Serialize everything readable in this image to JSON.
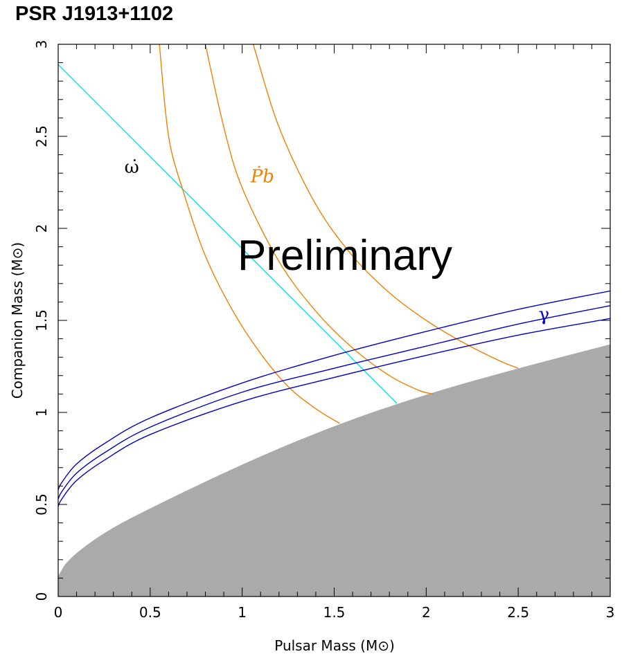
{
  "title": "PSR J1913+1102",
  "chart_data": {
    "type": "line",
    "title": "PSR J1913+1102",
    "xlabel": "Pulsar Mass (M⊙)",
    "ylabel": "Companion Mass (M⊙)",
    "xlim": [
      0,
      3
    ],
    "ylim": [
      0,
      3
    ],
    "xticks": [
      "0",
      "0.5",
      "1",
      "1.5",
      "2",
      "2.5",
      "3"
    ],
    "yticks": [
      "0",
      "0.5",
      "1",
      "1.5",
      "2",
      "2.5",
      "3"
    ],
    "grid": false,
    "annotation": "Preliminary",
    "excluded_region": {
      "color": "#aaaaaa",
      "x": [
        0,
        0.05,
        0.25,
        0.5,
        1.0,
        1.5,
        2.0,
        2.5,
        3.0
      ],
      "y": [
        0.11,
        0.2,
        0.35,
        0.48,
        0.72,
        0.93,
        1.1,
        1.24,
        1.37
      ]
    },
    "series": [
      {
        "name": "ω̇",
        "color": "#00e5e5",
        "label_at": [
          0.4,
          2.3
        ],
        "x": [
          0,
          1.84
        ],
        "y": [
          2.89,
          1.05
        ]
      },
      {
        "name": "Ṗb",
        "color": "#f08000",
        "label_at": [
          1.11,
          2.25
        ],
        "label_italic": true,
        "curves": [
          {
            "x": [
              0.55,
              0.6,
              0.68,
              0.8,
              0.95,
              1.1,
              1.25,
              1.4,
              1.53
            ],
            "y": [
              3.0,
              2.5,
              2.2,
              1.85,
              1.55,
              1.32,
              1.14,
              1.02,
              0.94
            ]
          },
          {
            "x": [
              0.8,
              0.9,
              1.0,
              1.2,
              1.4,
              1.6,
              1.8,
              1.96,
              2.04
            ],
            "y": [
              3.0,
              2.55,
              2.22,
              1.82,
              1.55,
              1.35,
              1.2,
              1.12,
              1.1
            ]
          },
          {
            "x": [
              1.06,
              1.2,
              1.4,
              1.6,
              1.8,
              2.0,
              2.2,
              2.4,
              2.5
            ],
            "y": [
              3.0,
              2.55,
              2.13,
              1.85,
              1.65,
              1.5,
              1.38,
              1.28,
              1.24
            ]
          }
        ]
      },
      {
        "name": "γ",
        "color": "#0000cc",
        "label_at": [
          2.64,
          1.5
        ],
        "curves": [
          {
            "x": [
              0,
              0.02,
              0.1,
              0.25,
              0.5,
              1.0,
              1.5,
              2.0,
              2.5,
              3.0
            ],
            "y": [
              0.58,
              0.62,
              0.72,
              0.83,
              0.97,
              1.16,
              1.31,
              1.44,
              1.56,
              1.66
            ]
          },
          {
            "x": [
              0,
              0.02,
              0.1,
              0.25,
              0.5,
              1.0,
              1.5,
              2.0,
              2.5,
              3.0
            ],
            "y": [
              0.53,
              0.57,
              0.67,
              0.78,
              0.92,
              1.11,
              1.24,
              1.36,
              1.48,
              1.58
            ]
          },
          {
            "x": [
              0,
              0.02,
              0.1,
              0.25,
              0.5,
              1.0,
              1.5,
              2.0,
              2.5,
              3.0
            ],
            "y": [
              0.49,
              0.53,
              0.63,
              0.74,
              0.88,
              1.06,
              1.19,
              1.31,
              1.42,
              1.51
            ]
          }
        ]
      }
    ]
  }
}
